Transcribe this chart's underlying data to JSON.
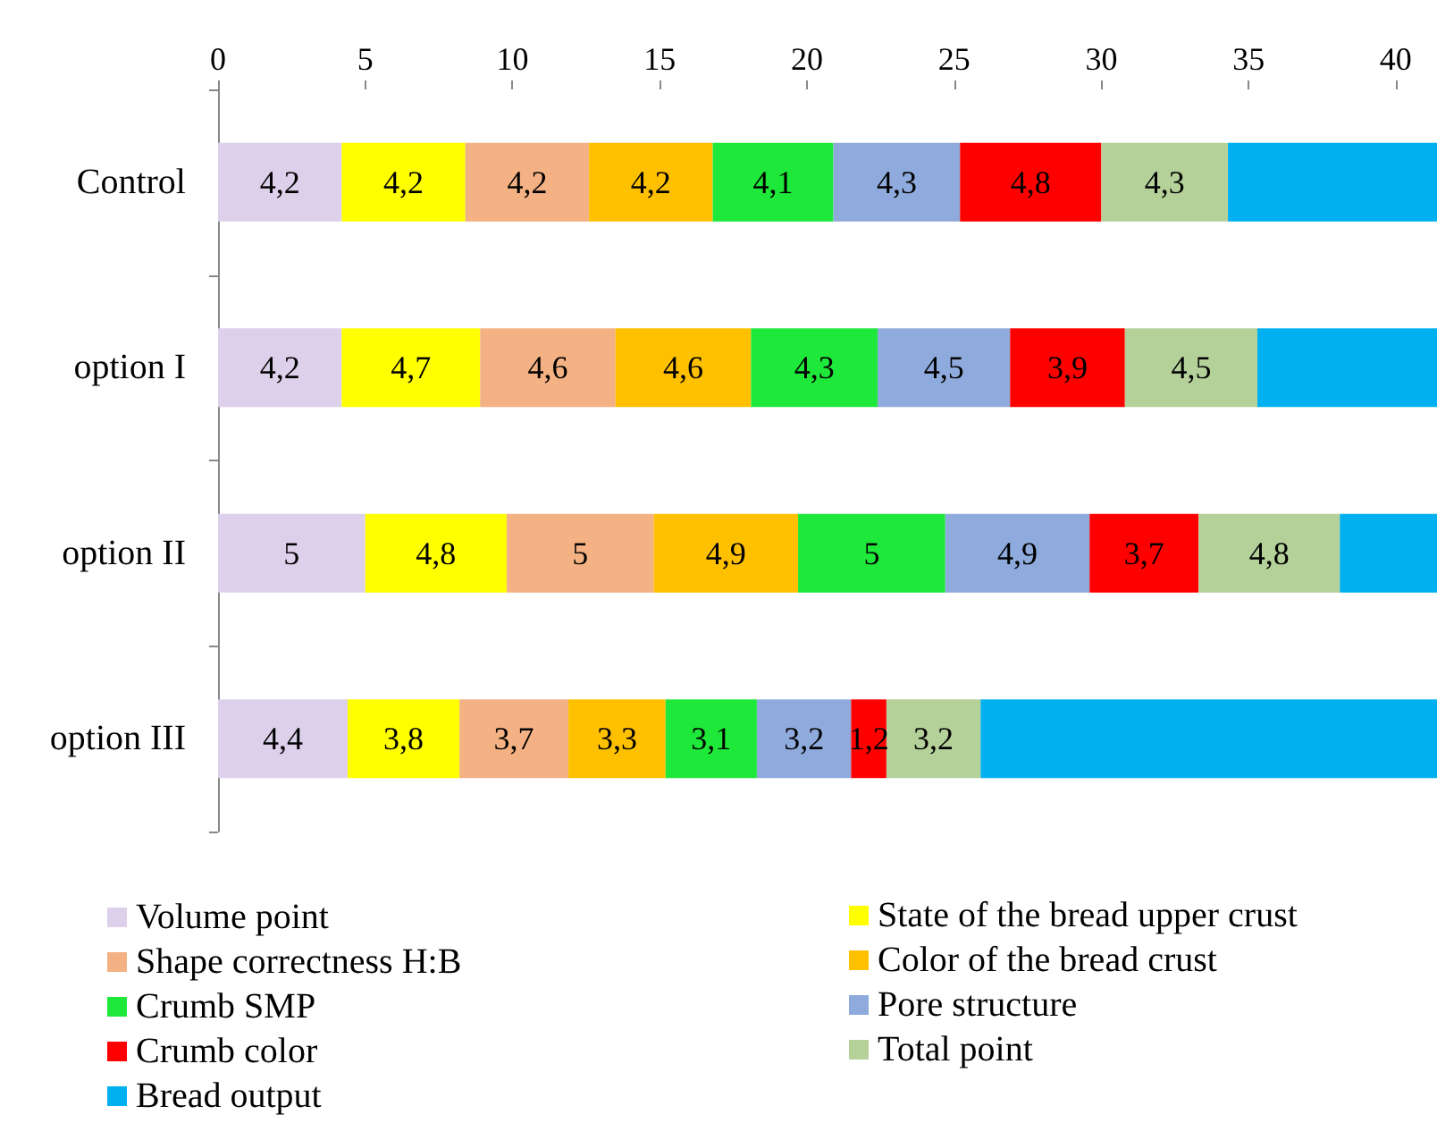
{
  "chart_data": {
    "type": "bar",
    "orientation": "horizontal",
    "stacked": true,
    "categories": [
      "Control",
      "option I",
      "option II",
      "option III"
    ],
    "xlim": [
      0,
      41.4
    ],
    "xticks": [
      0,
      5,
      10,
      15,
      20,
      25,
      30,
      35,
      40
    ],
    "legend": "bottom",
    "series": [
      {
        "name": "Volume point",
        "color": "#dcd0ea",
        "values": [
          4.2,
          4.2,
          5,
          4.4
        ],
        "value_labels": [
          "4,2",
          "4,2",
          "5",
          "4,4"
        ]
      },
      {
        "name": "State of the bread upper crust",
        "color": "#ffff00",
        "values": [
          4.2,
          4.7,
          4.8,
          3.8
        ],
        "value_labels": [
          "4,2",
          "4,7",
          "4,8",
          "3,8"
        ]
      },
      {
        "name": "Shape correctness H:B",
        "color": "#f4b183",
        "values": [
          4.2,
          4.6,
          5,
          3.7
        ],
        "value_labels": [
          "4,2",
          "4,6",
          "5",
          "3,7"
        ]
      },
      {
        "name": "Color of the bread crust",
        "color": "#ffc000",
        "values": [
          4.2,
          4.6,
          4.9,
          3.3
        ],
        "value_labels": [
          "4,2",
          "4,6",
          "4,9",
          "3,3"
        ]
      },
      {
        "name": "Crumb SMP",
        "color": "#1ee83a",
        "values": [
          4.1,
          4.3,
          5,
          3.1
        ],
        "value_labels": [
          "4,1",
          "4,3",
          "5",
          "3,1"
        ]
      },
      {
        "name": "Pore structure",
        "color": "#8faadc",
        "values": [
          4.3,
          4.5,
          4.9,
          3.2
        ],
        "value_labels": [
          "4,3",
          "4,5",
          "4,9",
          "3,2"
        ]
      },
      {
        "name": "Crumb color",
        "color": "#ff0000",
        "values": [
          4.8,
          3.9,
          3.7,
          1.2
        ],
        "value_labels": [
          "4,8",
          "3,9",
          "3,7",
          "1,2"
        ]
      },
      {
        "name": "Total point",
        "color": "#b5d19a",
        "values": [
          4.3,
          4.5,
          4.8,
          3.2
        ],
        "value_labels": [
          "4,3",
          "4,5",
          "4,8",
          "3,2"
        ]
      },
      {
        "name": "Bread output",
        "color": "#00b0f0",
        "values": [
          7.1,
          6.1,
          3.3,
          15.5
        ],
        "value_labels": [
          null,
          null,
          null,
          null
        ]
      }
    ]
  }
}
